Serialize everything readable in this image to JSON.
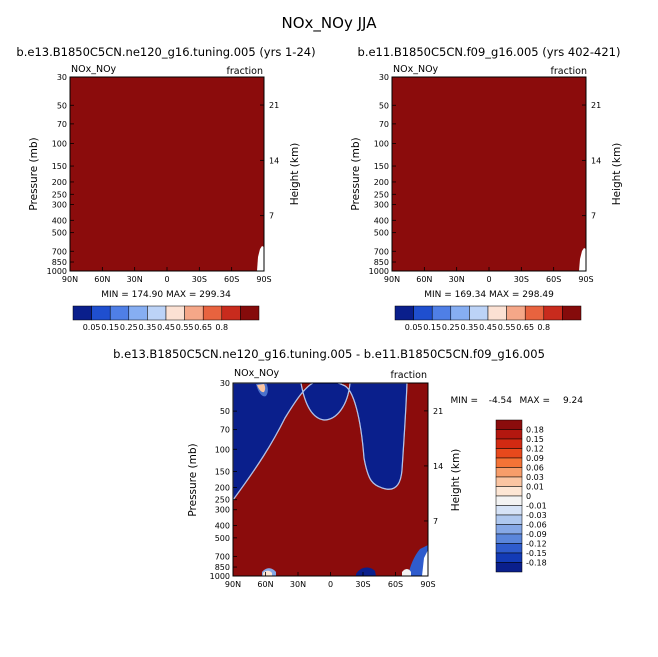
{
  "figure": {
    "title": "NOx_NOy JJA"
  },
  "chart_data": [
    {
      "type": "heatmap",
      "title": "b.e13.B1850C5CN.ne120_g16.tuning.005 (yrs 1-24)",
      "subtitle_left": "NOx_NOy",
      "subtitle_right": "fraction",
      "x_tick_labels": [
        "90N",
        "60N",
        "30N",
        "0",
        "30S",
        "60S",
        "90S"
      ],
      "y_tick_labels": [
        "30",
        "50",
        "70",
        "100",
        "150",
        "200",
        "250",
        "300",
        "400",
        "500",
        "700",
        "850",
        "1000"
      ],
      "y_tick_values": [
        30,
        50,
        70,
        100,
        150,
        200,
        250,
        300,
        400,
        500,
        700,
        850,
        1000
      ],
      "y2_tick_labels": [
        "21",
        "14",
        "7"
      ],
      "y2_tick_values": [
        21,
        14,
        7
      ],
      "xlabel": "",
      "ylabel": "Pressure (mb)",
      "y2label": "Height (km)",
      "ylim": [
        1000,
        30
      ],
      "stats_text": "MIN = 174.90   MAX = 299.34",
      "field": "uniform high value above the top contour level (> 0.8) across the whole domain"
    },
    {
      "type": "heatmap",
      "title": "b.e11.B1850C5CN.f09_g16.005 (yrs 402-421)",
      "subtitle_left": "NOx_NOy",
      "subtitle_right": "fraction",
      "x_tick_labels": [
        "90N",
        "60N",
        "30N",
        "0",
        "30S",
        "60S",
        "90S"
      ],
      "y_tick_labels": [
        "30",
        "50",
        "70",
        "100",
        "150",
        "200",
        "250",
        "300",
        "400",
        "500",
        "700",
        "850",
        "1000"
      ],
      "y_tick_values": [
        30,
        50,
        70,
        100,
        150,
        200,
        250,
        300,
        400,
        500,
        700,
        850,
        1000
      ],
      "y2_tick_labels": [
        "21",
        "14",
        "7"
      ],
      "y2_tick_values": [
        21,
        14,
        7
      ],
      "xlabel": "",
      "ylabel": "Pressure (mb)",
      "y2label": "Height (km)",
      "ylim": [
        1000,
        30
      ],
      "stats_text": "MIN = 169.34   MAX = 298.49",
      "field": "uniform high value above the top contour level (> 0.8) across the whole domain"
    },
    {
      "type": "heatmap",
      "title": "b.e13.B1850C5CN.ne120_g16.tuning.005 - b.e11.B1850C5CN.f09_g16.005",
      "subtitle_left": "NOx_NOy",
      "subtitle_right": "fraction",
      "x_tick_labels": [
        "90N",
        "60N",
        "30N",
        "0",
        "30S",
        "60S",
        "90S"
      ],
      "y_tick_labels": [
        "30",
        "50",
        "70",
        "100",
        "150",
        "200",
        "250",
        "300",
        "400",
        "500",
        "700",
        "850",
        "1000"
      ],
      "y_tick_values": [
        30,
        50,
        70,
        100,
        150,
        200,
        250,
        300,
        400,
        500,
        700,
        850,
        1000
      ],
      "y2_tick_labels": [
        "21",
        "14",
        "7"
      ],
      "y2_tick_values": [
        21,
        14,
        7
      ],
      "xlabel": "",
      "ylabel": "Pressure (mb)",
      "y2label": "Height (km)",
      "ylim": [
        1000,
        30
      ],
      "stats_min_label": "MIN =",
      "stats_min_value": "-4.54",
      "stats_max_label": "MAX =",
      "stats_max_value": "9.24",
      "field": "difference field: large positive (> 0.18) below the tropopause and in a tropical stratospheric plume near 30-50 mb; large negative (< -0.18) in the extratropical and tropical stratosphere"
    }
  ],
  "colorbars": {
    "horizontal": {
      "labels": [
        "0.05",
        "0.15",
        "0.25",
        "0.35",
        "0.45",
        "0.55",
        "0.65",
        "0.8"
      ],
      "colors": [
        "#0a1f8c",
        "#1f4fcf",
        "#4f7fe6",
        "#86aef2",
        "#bcd3f7",
        "#fbe1d3",
        "#f5a788",
        "#e8633f",
        "#c82b1d",
        "#850b0b"
      ]
    },
    "vertical": {
      "labels": [
        "0.18",
        "0.15",
        "0.12",
        "0.09",
        "0.06",
        "0.03",
        "0.01",
        "0",
        "-0.01",
        "-0.03",
        "-0.06",
        "-0.09",
        "-0.12",
        "-0.15",
        "-0.18"
      ],
      "colors": [
        "#8b0c0c",
        "#b3170f",
        "#d22a12",
        "#e8491c",
        "#f47336",
        "#f79d6a",
        "#fbc5a2",
        "#fde6d4",
        "#f3f3f3",
        "#d6e3f7",
        "#afc8ef",
        "#86a8e6",
        "#5b86db",
        "#2f5ccd",
        "#133bb6",
        "#0a1f8c"
      ]
    }
  },
  "colors": {
    "high": "#8b0c0c",
    "low": "#0a1f8c",
    "background": "#ffffff"
  }
}
